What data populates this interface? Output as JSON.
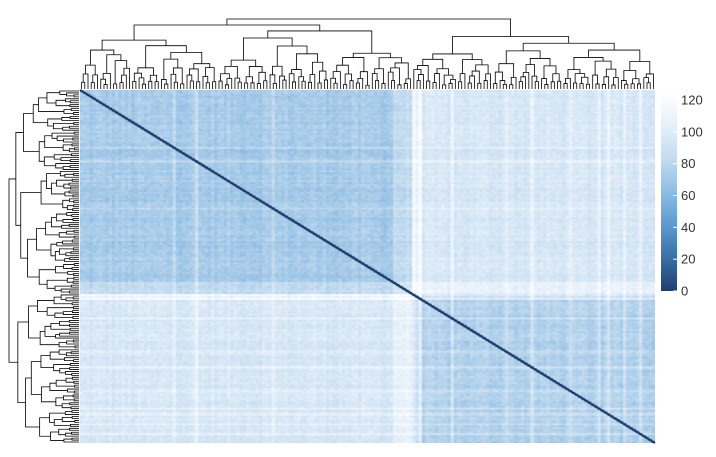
{
  "chart_data": {
    "type": "heatmap",
    "description": "clustered distance matrix heatmap with row and column dendrograms",
    "n_rows": 180,
    "n_cols": 180,
    "value_range": [
      0,
      125
    ],
    "diagonal_value": 0,
    "group_boundary_index": 104,
    "colorbar": {
      "ticks": [
        0,
        20,
        40,
        60,
        80,
        100,
        120
      ],
      "tick_labels": [
        "0",
        "20",
        "40",
        "60",
        "80",
        "100",
        "120"
      ],
      "colors": [
        "#1f3f6e",
        "#3a6fa5",
        "#5b9bd0",
        "#8fbde3",
        "#c4dcf0",
        "#e6f0fa",
        "#ffffff"
      ]
    },
    "block_means": {
      "cluster_a_within": 72,
      "cluster_b_within": 76,
      "between_clusters": 95
    }
  }
}
